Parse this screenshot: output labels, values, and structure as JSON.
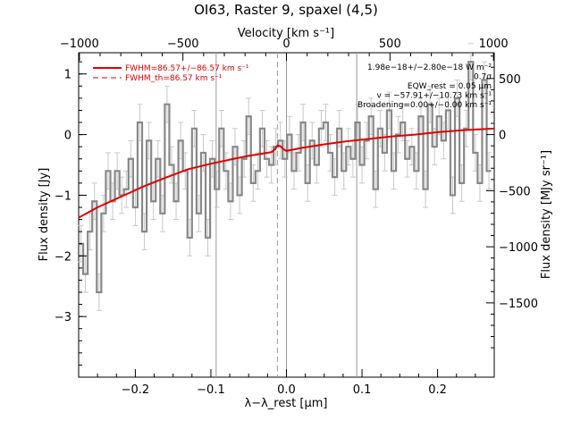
{
  "chart_data": {
    "type": "line",
    "title": "OI63, Raster 9, spaxel (4,5)",
    "xlabel": "λ−λ_rest [μm]",
    "ylabel_left": "Flux density [Jy]",
    "ylabel_right": "Flux density [MJy sr⁻¹]",
    "xlabel_top": "Velocity [km s⁻¹]",
    "xlim": [
      -0.275,
      0.275
    ],
    "ylim": [
      -4.0,
      1.35
    ],
    "x_ticks": [
      -0.2,
      -0.1,
      0.0,
      0.1,
      0.2
    ],
    "x_tick_labels": [
      "−0.2",
      "−0.1",
      "0.0",
      "0.1",
      "0.2"
    ],
    "y_ticks": [
      -3,
      -2,
      -1,
      0,
      1
    ],
    "y_tick_labels": [
      "−3",
      "−2",
      "−1",
      "0",
      "1"
    ],
    "top_ticks_velocity": [
      -1000,
      -500,
      0,
      500,
      1000
    ],
    "top_tick_labels": [
      "−1000",
      "−500",
      "0",
      "500",
      "1000"
    ],
    "right_ticks_mjysr": [
      -1500,
      -1000,
      -500,
      0,
      500
    ],
    "right_tick_labels": [
      "−1500",
      "−1000",
      "−500",
      "0",
      "500"
    ],
    "vlines_solid": [
      -0.093,
      0.0,
      0.093
    ],
    "vline_dashed": -0.012,
    "legend": [
      {
        "label": "FWHM=86.57+/−86.57 km s⁻¹",
        "style": "solid",
        "color": "#e00000"
      },
      {
        "label": "FWHM_th=86.57 km s⁻¹",
        "style": "dashed",
        "color": "#e00000"
      }
    ],
    "annotations": [
      "1.98e−18+/−2.80e−18 W m⁻²",
      "0.7σ",
      "EQW_rest = 0.05 μm",
      "v = −57.91+/−10.73 km s⁻¹",
      "Broadening=0.00+/−0.00 km s⁻¹"
    ],
    "series": [
      {
        "style": "steps",
        "color": "#888888",
        "x": [
          -0.272,
          -0.266,
          -0.26,
          -0.254,
          -0.248,
          -0.242,
          -0.236,
          -0.23,
          -0.224,
          -0.218,
          -0.212,
          -0.206,
          -0.2,
          -0.194,
          -0.188,
          -0.182,
          -0.176,
          -0.17,
          -0.164,
          -0.158,
          -0.152,
          -0.146,
          -0.14,
          -0.134,
          -0.128,
          -0.122,
          -0.116,
          -0.11,
          -0.104,
          -0.098,
          -0.092,
          -0.086,
          -0.08,
          -0.074,
          -0.068,
          -0.062,
          -0.056,
          -0.05,
          -0.044,
          -0.038,
          -0.032,
          -0.026,
          -0.02,
          -0.014,
          -0.008,
          -0.002,
          0.004,
          0.01,
          0.016,
          0.022,
          0.028,
          0.034,
          0.04,
          0.046,
          0.052,
          0.058,
          0.064,
          0.07,
          0.076,
          0.082,
          0.088,
          0.094,
          0.1,
          0.106,
          0.112,
          0.118,
          0.124,
          0.13,
          0.136,
          0.142,
          0.148,
          0.154,
          0.16,
          0.166,
          0.172,
          0.178,
          0.184,
          0.19,
          0.196,
          0.202,
          0.208,
          0.214,
          0.22,
          0.226,
          0.232,
          0.238,
          0.244,
          0.25,
          0.256,
          0.262,
          0.268
        ],
        "values": [
          -1.8,
          -2.3,
          -1.6,
          -1.1,
          -2.6,
          -1.3,
          -0.6,
          -1.1,
          -0.6,
          -1.0,
          -0.9,
          -0.4,
          -1.2,
          0.2,
          -1.6,
          -0.1,
          -1.1,
          -0.4,
          -1.3,
          0.5,
          -0.5,
          -1.1,
          -0.1,
          -0.6,
          -1.7,
          0.1,
          -1.3,
          -0.3,
          -1.7,
          -0.4,
          -0.9,
          0.1,
          -0.6,
          -1.1,
          -0.2,
          -1.0,
          -0.4,
          0.3,
          -0.8,
          -0.6,
          0.1,
          -0.4,
          -0.5,
          -0.2,
          -0.1,
          -0.4,
          0.0,
          -0.6,
          -0.3,
          0.2,
          -0.8,
          -0.1,
          -0.5,
          0.1,
          0.2,
          -0.3,
          -0.7,
          0.1,
          -0.6,
          -0.2,
          -0.4,
          0.2,
          -0.5,
          -0.1,
          0.3,
          -0.9,
          0.1,
          -0.3,
          0.4,
          -0.6,
          0.0,
          0.2,
          -0.4,
          -0.2,
          -0.6,
          0.3,
          -0.9,
          0.5,
          -0.2,
          0.3,
          -0.1,
          0.4,
          -1.0,
          0.6,
          -0.8,
          0.1,
          1.2,
          -0.3,
          -0.8,
          0.9,
          -0.6
        ],
        "errors": [
          0.3,
          0.3,
          0.3,
          0.3,
          0.3,
          0.3,
          0.3,
          0.3,
          0.3,
          0.3,
          0.3,
          0.3,
          0.3,
          0.3,
          0.3,
          0.3,
          0.3,
          0.3,
          0.3,
          0.3,
          0.3,
          0.3,
          0.3,
          0.3,
          0.3,
          0.3,
          0.3,
          0.3,
          0.3,
          0.3,
          0.3,
          0.3,
          0.3,
          0.3,
          0.3,
          0.3,
          0.3,
          0.3,
          0.3,
          0.3,
          0.3,
          0.3,
          0.3,
          0.3,
          0.3,
          0.3,
          0.3,
          0.3,
          0.3,
          0.3,
          0.3,
          0.3,
          0.3,
          0.3,
          0.3,
          0.3,
          0.3,
          0.3,
          0.3,
          0.3,
          0.3,
          0.3,
          0.3,
          0.3,
          0.3,
          0.3,
          0.3,
          0.3,
          0.3,
          0.3,
          0.3,
          0.3,
          0.3,
          0.3,
          0.3,
          0.3,
          0.3,
          0.3,
          0.3,
          0.3,
          0.3,
          0.3,
          0.3,
          0.3,
          0.3,
          0.3,
          0.3,
          0.3,
          0.3,
          0.3,
          0.3
        ]
      },
      {
        "style": "line",
        "color": "#e00000",
        "x": [
          -0.275,
          -0.25,
          -0.22,
          -0.19,
          -0.16,
          -0.13,
          -0.1,
          -0.07,
          -0.05,
          -0.03,
          -0.02,
          -0.015,
          -0.012,
          -0.008,
          -0.004,
          0.0,
          0.02,
          0.05,
          0.08,
          0.11,
          0.14,
          0.17,
          0.2,
          0.23,
          0.26,
          0.275
        ],
        "values": [
          -1.37,
          -1.2,
          -1.03,
          -0.86,
          -0.71,
          -0.57,
          -0.48,
          -0.4,
          -0.35,
          -0.31,
          -0.29,
          -0.24,
          -0.18,
          -0.19,
          -0.24,
          -0.27,
          -0.22,
          -0.16,
          -0.11,
          -0.07,
          -0.03,
          0.0,
          0.04,
          0.07,
          0.09,
          0.1
        ]
      }
    ]
  }
}
